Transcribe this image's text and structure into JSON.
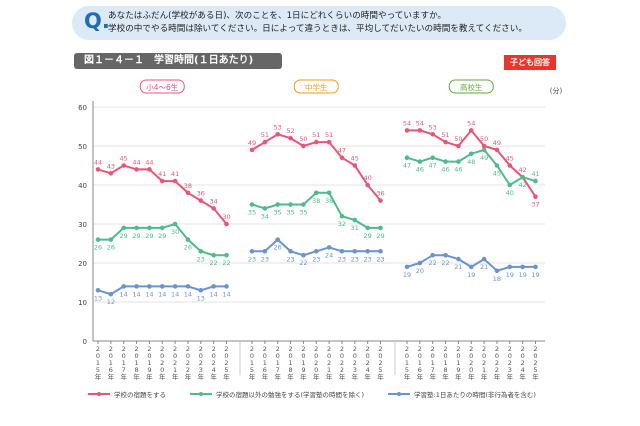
{
  "question": {
    "mark": "Q.",
    "line1": "あなたはふだん(学校がある日)、次のことを、1日にどれくらいの時間やっていますか。",
    "line2": "学校の中でやる時間は除いてください。日によって違うときは、平均してだいたいの時間を教えてください。"
  },
  "figure_title": "図１－４－１　学習時間(１日あたり)",
  "badge": "子ども回答",
  "chart_data": {
    "type": "line",
    "unit": "(分)",
    "ylim": [
      0,
      60
    ],
    "yticks": [
      0,
      10,
      20,
      30,
      40,
      50,
      60
    ],
    "grid": true,
    "categories": [
      "2015年",
      "2016年",
      "2017年",
      "2018年",
      "2019年",
      "2020年",
      "2021年",
      "2022年",
      "2023年",
      "2024年",
      "2025年"
    ],
    "colors": [
      "#e8557a",
      "#4dbb8a",
      "#6a93cf"
    ],
    "legend": [
      "学校の宿題をする",
      "学校の宿題以外の勉強をする(学習塾の時間を除く)",
      "学習塾:1日あたりの時間(非行為者を含む)"
    ],
    "legend_position": "bottom",
    "groups": [
      {
        "label": "小4～6生",
        "color": "#e8557a",
        "series": [
          [
            44,
            43,
            45,
            44,
            44,
            41,
            41,
            38,
            36,
            34,
            30
          ],
          [
            26,
            26,
            29,
            29,
            29,
            29,
            30,
            26,
            23,
            22,
            22
          ],
          [
            13,
            12,
            14,
            14,
            14,
            14,
            14,
            14,
            13,
            14,
            14
          ]
        ]
      },
      {
        "label": "中学生",
        "color": "#f39a1e",
        "series": [
          [
            49,
            51,
            53,
            52,
            50,
            51,
            51,
            47,
            45,
            40,
            36
          ],
          [
            35,
            34,
            35,
            35,
            35,
            38,
            38,
            32,
            31,
            29,
            29
          ],
          [
            23,
            23,
            26,
            23,
            22,
            23,
            24,
            23,
            23,
            23,
            23
          ]
        ]
      },
      {
        "label": "高校生",
        "color": "#5aaa3a",
        "series": [
          [
            54,
            54,
            53,
            51,
            50,
            54,
            50,
            49,
            45,
            42,
            37
          ],
          [
            47,
            46,
            47,
            46,
            46,
            48,
            49,
            45,
            40,
            42,
            41
          ],
          [
            19,
            20,
            22,
            22,
            21,
            19,
            21,
            18,
            19,
            19,
            19
          ]
        ]
      }
    ]
  }
}
